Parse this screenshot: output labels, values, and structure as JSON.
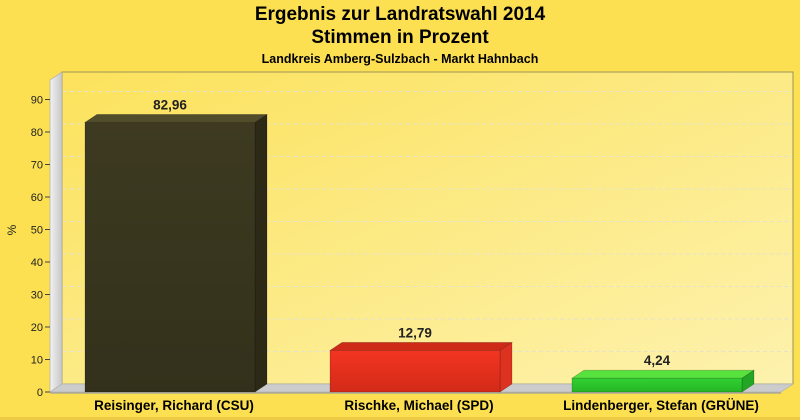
{
  "header": {
    "title_line1": "Ergebnis zur Landratswahl 2014",
    "title_line2": "Stimmen in Prozent",
    "subtitle": "Landkreis Amberg-Sulzbach - Markt Hahnbach"
  },
  "chart_data": {
    "type": "bar",
    "style": "3d-bars, horizontal dashed gridlines, no legend",
    "title": "Ergebnis zur Landratswahl 2014",
    "subtitle2": "Stimmen in Prozent",
    "subtitle3": "Landkreis Amberg-Sulzbach - Markt Hahnbach",
    "ylabel": "%",
    "ylim": [
      0,
      95
    ],
    "yticks": [
      0,
      10,
      20,
      30,
      40,
      50,
      60,
      70,
      80,
      90
    ],
    "categories": [
      "Reisinger, Richard (CSU)",
      "Rischke, Michael (SPD)",
      "Lindenberger, Stefan (GRÜNE)"
    ],
    "values": [
      82.96,
      12.79,
      4.24
    ],
    "value_labels": [
      "82,96",
      "12,79",
      "4,24"
    ],
    "bar_keys": [
      "csu",
      "spd",
      "gruene"
    ],
    "bar_faces": [
      {
        "front": "#3d3a21",
        "front2": "#33311b",
        "top": "#514d2b",
        "side": "#2c2a16"
      },
      {
        "front": "#f23522",
        "front2": "#d32a18",
        "top": "#cd2a18",
        "side": "#de3220"
      },
      {
        "front": "#31d031",
        "front2": "#26b526",
        "top": "#58e23e",
        "side": "#23a623"
      }
    ],
    "colors": {
      "page_bg": "#fce052",
      "plot_bg_from": "#fce25c",
      "plot_bg_to": "#fdf2ae",
      "plot_border": "#9b9456",
      "grid": "#e6e3cc",
      "wall_light": "#f2f2f2",
      "wall_dark": "#c7c7c7",
      "floor": "#cccccc",
      "floor_edge": "#a0a0a0",
      "tick": "#444444",
      "axis_text": "#222222",
      "value_text": "#222222",
      "category_text": "#000000"
    }
  }
}
